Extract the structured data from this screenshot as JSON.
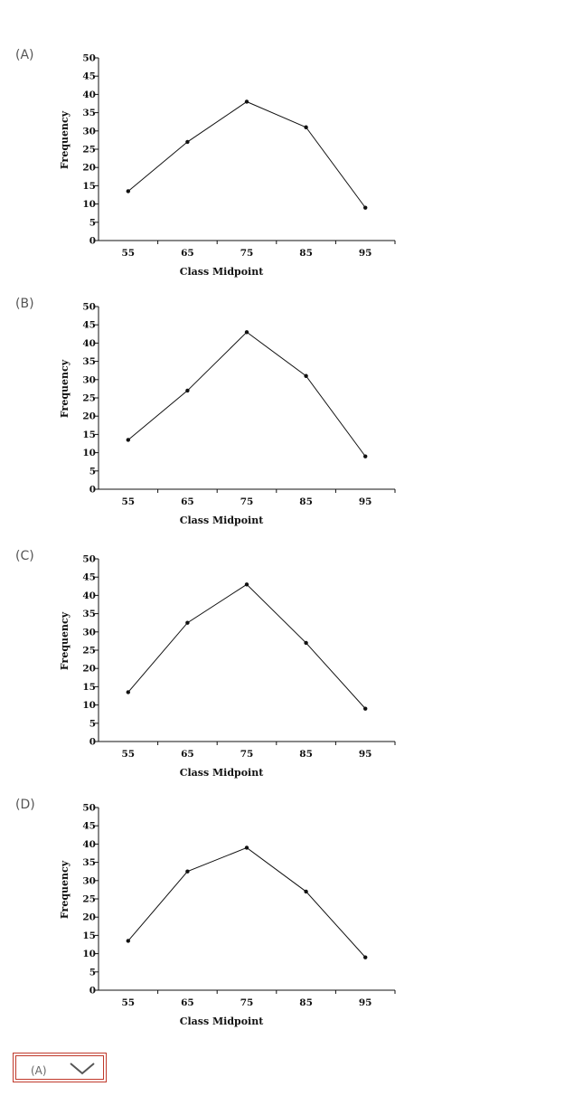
{
  "options": [
    {
      "label": "(A)"
    },
    {
      "label": "(B)"
    },
    {
      "label": "(C)"
    },
    {
      "label": "(D)"
    }
  ],
  "chart_data": [
    {
      "type": "line",
      "categories": [
        "55",
        "65",
        "75",
        "85",
        "95"
      ],
      "values": [
        13.5,
        27,
        38,
        31,
        9
      ],
      "xlabel": "Class Midpoint",
      "ylabel": "Frequency",
      "ylim": [
        0,
        50
      ],
      "yticks": [
        "0",
        "5",
        "10",
        "15",
        "20",
        "25",
        "30",
        "35",
        "40",
        "45",
        "50"
      ]
    },
    {
      "type": "line",
      "categories": [
        "55",
        "65",
        "75",
        "85",
        "95"
      ],
      "values": [
        13.5,
        27,
        43,
        31,
        9
      ],
      "xlabel": "Class Midpoint",
      "ylabel": "Frequency",
      "ylim": [
        0,
        50
      ],
      "yticks": [
        "0",
        "5",
        "10",
        "15",
        "20",
        "25",
        "30",
        "35",
        "40",
        "45",
        "50"
      ]
    },
    {
      "type": "line",
      "categories": [
        "55",
        "65",
        "75",
        "85",
        "95"
      ],
      "values": [
        13.5,
        32.5,
        43,
        27,
        9
      ],
      "xlabel": "Class Midpoint",
      "ylabel": "Frequency",
      "ylim": [
        0,
        50
      ],
      "yticks": [
        "0",
        "5",
        "10",
        "15",
        "20",
        "25",
        "30",
        "35",
        "40",
        "45",
        "50"
      ]
    },
    {
      "type": "line",
      "categories": [
        "55",
        "65",
        "75",
        "85",
        "95"
      ],
      "values": [
        13.5,
        32.5,
        39,
        27,
        9
      ],
      "xlabel": "Class Midpoint",
      "ylabel": "Frequency",
      "ylim": [
        0,
        50
      ],
      "yticks": [
        "0",
        "5",
        "10",
        "15",
        "20",
        "25",
        "30",
        "35",
        "40",
        "45",
        "50"
      ]
    }
  ],
  "answer_select": {
    "value": "(A)",
    "icon": "chevron-down-icon"
  }
}
